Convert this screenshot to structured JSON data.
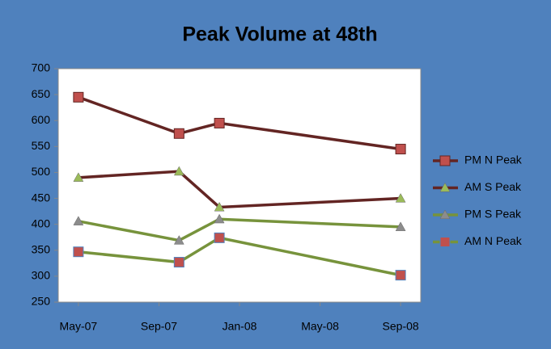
{
  "chart_data": {
    "type": "line",
    "title": "Peak Volume at 48th",
    "x": [
      "2007-05",
      "2007-10",
      "2007-12",
      "2008-09"
    ],
    "xlim": [
      "2007-04",
      "2008-10"
    ],
    "xticks": [
      {
        "value": "2007-05",
        "label": "May-07"
      },
      {
        "value": "2007-09",
        "label": "Sep-07"
      },
      {
        "value": "2008-01",
        "label": "Jan-08"
      },
      {
        "value": "2008-05",
        "label": "May-08"
      },
      {
        "value": "2008-09",
        "label": "Sep-08"
      }
    ],
    "ylim": [
      250,
      700
    ],
    "yticks": [
      250,
      300,
      350,
      400,
      450,
      500,
      550,
      600,
      650,
      700
    ],
    "legend": "right",
    "series": [
      {
        "name": "PM N Peak",
        "color": "#632523",
        "marker": "square",
        "marker_color": "#c0504d",
        "values": [
          645,
          575,
          595,
          545
        ]
      },
      {
        "name": "AM S Peak",
        "color": "#632523",
        "marker": "triangle",
        "marker_color": "#9bbb59",
        "values": [
          490,
          502,
          433,
          450
        ]
      },
      {
        "name": "PM S Peak",
        "color": "#77933c",
        "marker": "triangle",
        "marker_color": "#8c8c8c",
        "values": [
          406,
          369,
          410,
          395
        ]
      },
      {
        "name": "AM N Peak",
        "color": "#77933c",
        "marker": "square",
        "marker_color": "#c0504d",
        "values": [
          347,
          327,
          374,
          302
        ]
      }
    ]
  }
}
